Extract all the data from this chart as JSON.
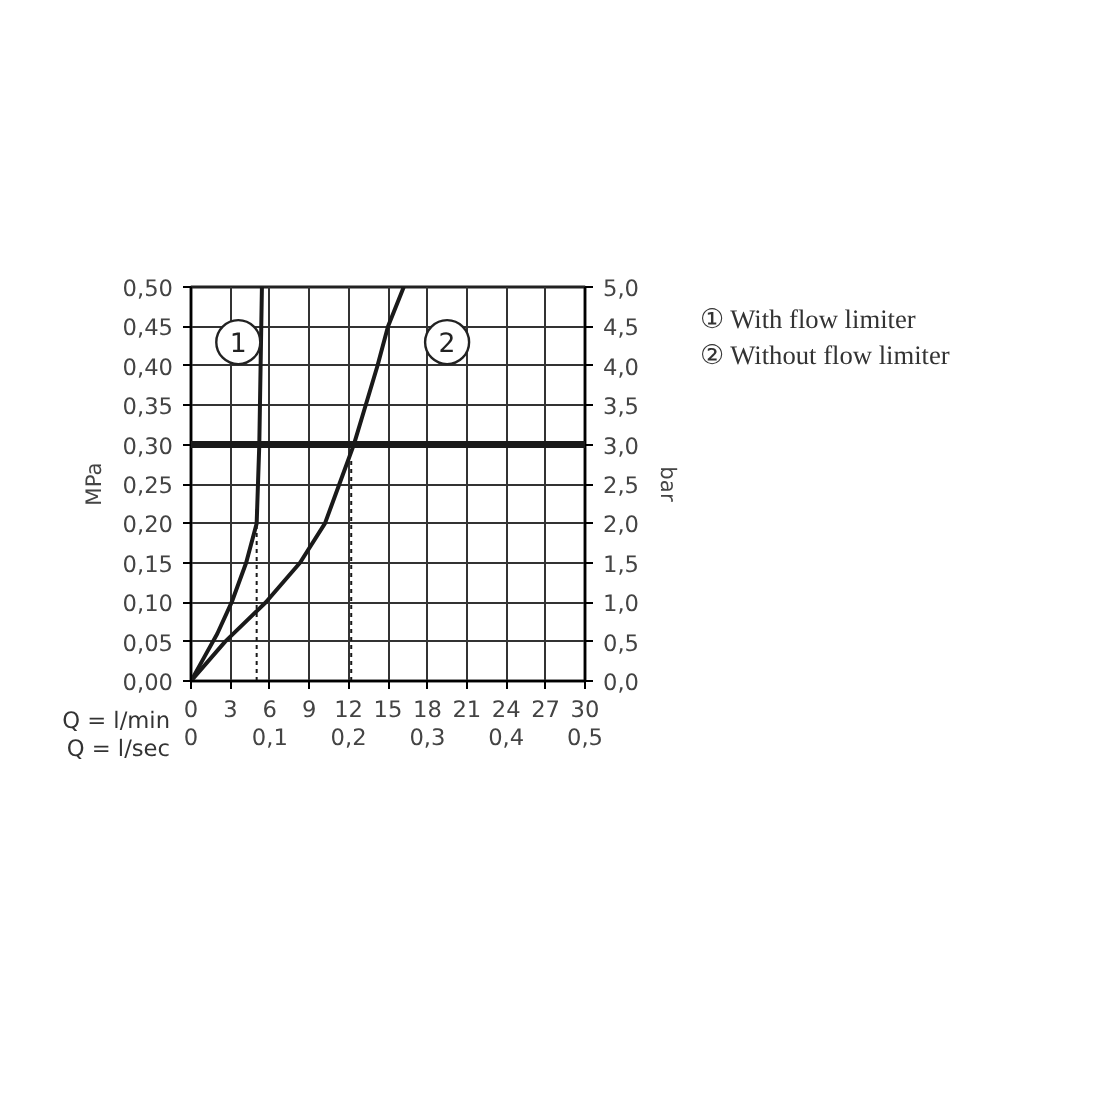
{
  "chart_data": {
    "type": "line",
    "xlabel": "Q = l/min",
    "x2label": "Q = l/sec",
    "ylabel": "MPa",
    "y2label": "bar",
    "xlim": [
      0,
      30
    ],
    "xticks": [
      0,
      3,
      6,
      9,
      12,
      15,
      18,
      21,
      24,
      27,
      30
    ],
    "x2lim": [
      0,
      0.5
    ],
    "x2ticks": [
      0,
      {
        "value": 0.1,
        "label": "0,1"
      },
      {
        "value": 0.2,
        "label": "0,2"
      },
      {
        "value": 0.3,
        "label": "0,3"
      },
      {
        "value": 0.4,
        "label": "0,4"
      },
      {
        "value": 0.5,
        "label": "0,5"
      }
    ],
    "ylim": [
      0,
      0.5
    ],
    "yticks": [
      {
        "value": 0,
        "label": "0,00"
      },
      {
        "value": 0.05,
        "label": "0,05"
      },
      {
        "value": 0.1,
        "label": "0,10"
      },
      {
        "value": 0.15,
        "label": "0,15"
      },
      {
        "value": 0.2,
        "label": "0,20"
      },
      {
        "value": 0.25,
        "label": "0,25"
      },
      {
        "value": 0.3,
        "label": "0,30"
      },
      {
        "value": 0.35,
        "label": "0,35"
      },
      {
        "value": 0.4,
        "label": "0,40"
      },
      {
        "value": 0.45,
        "label": "0,45"
      },
      {
        "value": 0.5,
        "label": "0,50"
      }
    ],
    "y2lim": [
      0,
      5
    ],
    "y2ticks": [
      {
        "value": 0,
        "label": "0,0"
      },
      {
        "value": 0.5,
        "label": "0,5"
      },
      {
        "value": 1,
        "label": "1,0"
      },
      {
        "value": 1.5,
        "label": "1,5"
      },
      {
        "value": 2,
        "label": "2,0"
      },
      {
        "value": 2.5,
        "label": "2,5"
      },
      {
        "value": 3,
        "label": "3,0"
      },
      {
        "value": 3.5,
        "label": "3,5"
      },
      {
        "value": 4,
        "label": "4,0"
      },
      {
        "value": 4.5,
        "label": "4,5"
      },
      {
        "value": 5,
        "label": "5,0"
      }
    ],
    "grid": true,
    "series": [
      {
        "color": "#1a1a1a",
        "x": [
          0,
          1,
          2,
          3.1,
          4.2,
          5.0,
          5.2,
          5.3,
          5.4
        ],
        "values": [
          0,
          0.03,
          0.06,
          0.1,
          0.15,
          0.2,
          0.3,
          0.4,
          0.5
        ]
      },
      {
        "color": "#1a1a1a",
        "x": [
          0,
          2.6,
          5.7,
          8.3,
          10.2,
          11.3,
          12.4,
          13.3,
          14.2,
          15.0,
          16.2
        ],
        "values": [
          0,
          0.05,
          0.1,
          0.15,
          0.2,
          0.25,
          0.3,
          0.35,
          0.4,
          0.45,
          0.5
        ]
      },
      {
        "color": "#1a1a1a",
        "line_style": "dashed",
        "x": [
          5.0,
          5.0
        ],
        "values": [
          0,
          0.22
        ]
      },
      {
        "color": "#1a1a1a",
        "line_style": "dashed",
        "x": [
          12.2,
          12.2
        ],
        "values": [
          0,
          0.28
        ]
      }
    ],
    "ref_lines": [
      {
        "axis": "y",
        "value": 0.3,
        "color": "#1a1a1a"
      }
    ],
    "annotations": [
      {
        "text": "1",
        "x": 3.6,
        "y": 0.43
      },
      {
        "text": "2",
        "x": 19.5,
        "y": 0.43
      },
      "① With flow limiter",
      "② Without flow limiter"
    ]
  }
}
